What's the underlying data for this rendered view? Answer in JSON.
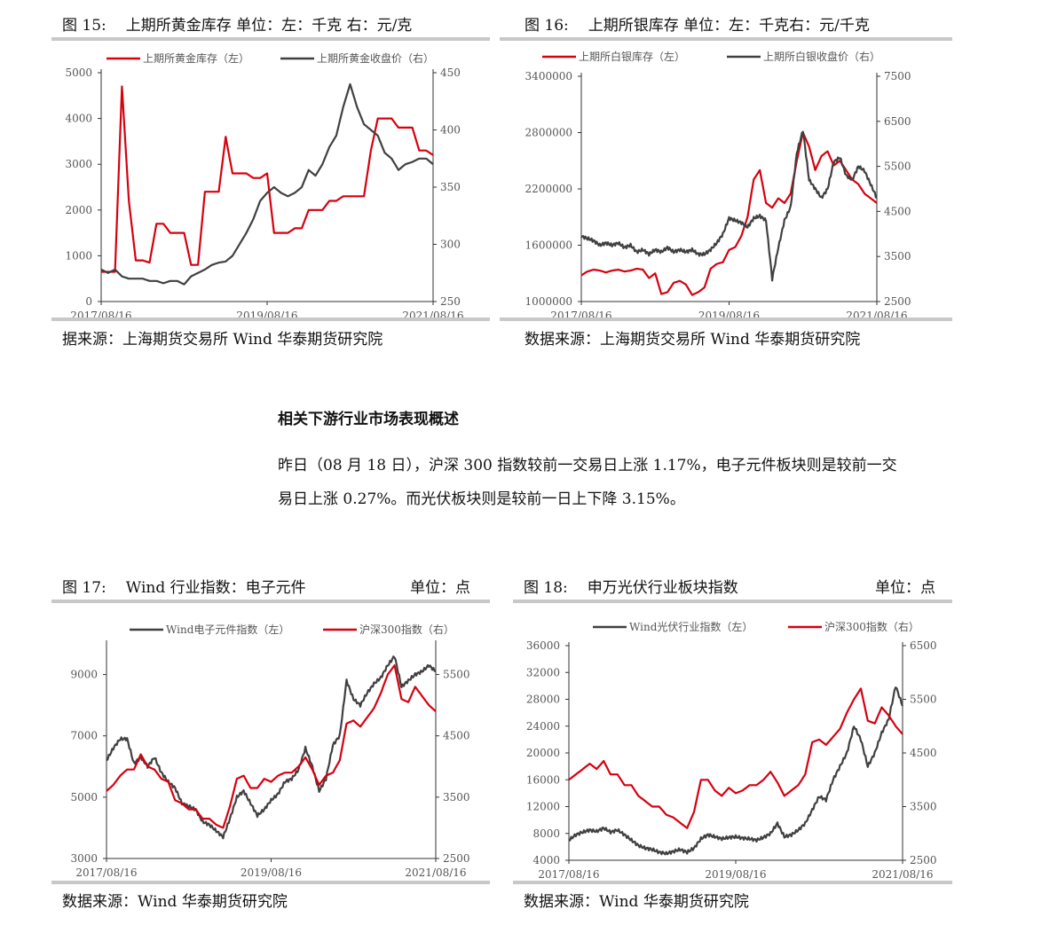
{
  "colors": {
    "red": "#d7000f",
    "gray": "#404040",
    "rule": "#c8c8c8"
  },
  "section": {
    "heading": "相关下游行业市场表现概述",
    "para_line1": "昨日（08 月 18 日），沪深 300 指数较前一交易日上涨 1.17%，电子元件板块则是较前一交",
    "para_line2": "易日上涨 0.27%。而光伏板块则是较前一日上下降 3.15%。"
  },
  "figures": [
    {
      "num": "图 15:",
      "title": "上期所黄金库存  单位：左：千克  右：元/克",
      "unit": "",
      "source": "据来源：上海期货交易所 Wind 华泰期货研究院"
    },
    {
      "num": "图 16:",
      "title": "上期所银库存 单位：左：千克右：元/千克",
      "unit": "",
      "source": "数据来源：上海期货交易所 Wind 华泰期货研究院"
    },
    {
      "num": "图 17:",
      "title": "Wind 行业指数：电子元件",
      "unit": "单位：点",
      "source": "数据来源：Wind 华泰期货研究院"
    },
    {
      "num": "图 18:",
      "title": "申万光伏行业板块指数",
      "unit": "单位：点",
      "source": "数据来源：Wind 华泰期货研究院"
    }
  ],
  "chart_data": [
    {
      "type": "line",
      "x_ticks": [
        "2017/08/16",
        "2019/08/16",
        "2021/08/16"
      ],
      "x": [
        "2017-08",
        "2017-09",
        "2017-10",
        "2017-11",
        "2017-12",
        "2018-01",
        "2018-02",
        "2018-03",
        "2018-04",
        "2018-05",
        "2018-06",
        "2018-07",
        "2018-08",
        "2018-09",
        "2018-10",
        "2018-11",
        "2018-12",
        "2019-01",
        "2019-02",
        "2019-03",
        "2019-04",
        "2019-05",
        "2019-06",
        "2019-07",
        "2019-08",
        "2019-09",
        "2019-10",
        "2019-11",
        "2019-12",
        "2020-01",
        "2020-02",
        "2020-03",
        "2020-04",
        "2020-05",
        "2020-06",
        "2020-07",
        "2020-08",
        "2020-09",
        "2020-10",
        "2020-11",
        "2020-12",
        "2021-01",
        "2021-02",
        "2021-03",
        "2021-04",
        "2021-05",
        "2021-06",
        "2021-07",
        "2021-08"
      ],
      "ylim_left": [
        0,
        5000
      ],
      "yticks_left": [
        0,
        1000,
        2000,
        3000,
        4000,
        5000
      ],
      "ylim_right": [
        250,
        450
      ],
      "yticks_right": [
        250,
        300,
        350,
        400,
        450
      ],
      "series": [
        {
          "name": "上期所黄金库存（左）",
          "axis": "left",
          "color": "#d7000f",
          "values": [
            650,
            650,
            650,
            4700,
            2200,
            900,
            900,
            850,
            1700,
            1700,
            1500,
            1500,
            1500,
            800,
            800,
            2400,
            2400,
            2400,
            3600,
            2800,
            2800,
            2800,
            2700,
            2700,
            2800,
            1500,
            1500,
            1500,
            1600,
            1600,
            2000,
            2000,
            2000,
            2200,
            2200,
            2300,
            2300,
            2300,
            2300,
            3300,
            4000,
            4000,
            4000,
            3800,
            3800,
            3800,
            3300,
            3300,
            3200
          ]
        },
        {
          "name": "上期所黄金收盘价（右）",
          "axis": "right",
          "color": "#404040",
          "values": [
            278,
            275,
            278,
            272,
            270,
            270,
            270,
            268,
            268,
            266,
            268,
            268,
            265,
            272,
            275,
            278,
            282,
            284,
            285,
            290,
            300,
            310,
            322,
            338,
            345,
            350,
            345,
            342,
            345,
            350,
            365,
            360,
            370,
            385,
            395,
            420,
            440,
            420,
            405,
            400,
            395,
            380,
            375,
            365,
            370,
            372,
            375,
            375,
            370
          ]
        }
      ]
    },
    {
      "type": "line",
      "x_ticks": [
        "2017/08/16",
        "2019/08/16",
        "2021/08/16"
      ],
      "x": [
        "2017-08",
        "2017-09",
        "2017-10",
        "2017-11",
        "2017-12",
        "2018-01",
        "2018-02",
        "2018-03",
        "2018-04",
        "2018-05",
        "2018-06",
        "2018-07",
        "2018-08",
        "2018-09",
        "2018-10",
        "2018-11",
        "2018-12",
        "2019-01",
        "2019-02",
        "2019-03",
        "2019-04",
        "2019-05",
        "2019-06",
        "2019-07",
        "2019-08",
        "2019-09",
        "2019-10",
        "2019-11",
        "2019-12",
        "2020-01",
        "2020-02",
        "2020-03",
        "2020-04",
        "2020-05",
        "2020-06",
        "2020-07",
        "2020-08",
        "2020-09",
        "2020-10",
        "2020-11",
        "2020-12",
        "2021-01",
        "2021-02",
        "2021-03",
        "2021-04",
        "2021-05",
        "2021-06",
        "2021-07",
        "2021-08"
      ],
      "ylim_left": [
        1000000,
        3400000
      ],
      "yticks_left": [
        1000000,
        1600000,
        2200000,
        2800000,
        3400000
      ],
      "ylim_right": [
        2500,
        7500
      ],
      "yticks_right": [
        2500,
        3500,
        4500,
        5500,
        6500,
        7500
      ],
      "series": [
        {
          "name": "上期所白银库存（左）",
          "axis": "left",
          "color": "#d7000f",
          "values": [
            1280000,
            1320000,
            1340000,
            1330000,
            1310000,
            1330000,
            1340000,
            1320000,
            1330000,
            1350000,
            1340000,
            1250000,
            1300000,
            1080000,
            1100000,
            1200000,
            1220000,
            1180000,
            1070000,
            1100000,
            1150000,
            1350000,
            1400000,
            1420000,
            1550000,
            1580000,
            1700000,
            1900000,
            2300000,
            2400000,
            2050000,
            2000000,
            2100000,
            2050000,
            2150000,
            2500000,
            2800000,
            2650000,
            2400000,
            2550000,
            2600000,
            2450000,
            2500000,
            2400000,
            2300000,
            2250000,
            2150000,
            2100000,
            2050000
          ]
        },
        {
          "name": "上期所白银收盘价（右）",
          "axis": "right",
          "color": "#404040",
          "values": [
            3950,
            3900,
            3850,
            3750,
            3800,
            3750,
            3800,
            3700,
            3750,
            3600,
            3650,
            3550,
            3650,
            3600,
            3700,
            3600,
            3650,
            3600,
            3650,
            3550,
            3550,
            3650,
            3800,
            4000,
            4350,
            4300,
            4250,
            4150,
            4350,
            4400,
            4300,
            3000,
            3700,
            4300,
            4600,
            5800,
            6300,
            5200,
            5000,
            4800,
            5000,
            5600,
            5700,
            5300,
            5200,
            5500,
            5400,
            5100,
            4800
          ]
        }
      ]
    },
    {
      "type": "line",
      "x_ticks": [
        "2017/08/16",
        "2019/08/16",
        "2021/08/16"
      ],
      "x": [
        "2017-08",
        "2017-09",
        "2017-10",
        "2017-11",
        "2017-12",
        "2018-01",
        "2018-02",
        "2018-03",
        "2018-04",
        "2018-05",
        "2018-06",
        "2018-07",
        "2018-08",
        "2018-09",
        "2018-10",
        "2018-11",
        "2018-12",
        "2019-01",
        "2019-02",
        "2019-03",
        "2019-04",
        "2019-05",
        "2019-06",
        "2019-07",
        "2019-08",
        "2019-09",
        "2019-10",
        "2019-11",
        "2019-12",
        "2020-01",
        "2020-02",
        "2020-03",
        "2020-04",
        "2020-05",
        "2020-06",
        "2020-07",
        "2020-08",
        "2020-09",
        "2020-10",
        "2020-11",
        "2020-12",
        "2021-01",
        "2021-02",
        "2021-03",
        "2021-04",
        "2021-05",
        "2021-06",
        "2021-07",
        "2021-08"
      ],
      "ylim_left": [
        3000,
        10000
      ],
      "yticks_left": [
        3000,
        5000,
        7000,
        9000
      ],
      "ylim_right": [
        2500,
        6000
      ],
      "yticks_right": [
        2500,
        3500,
        4500,
        5500
      ],
      "series": [
        {
          "name": "Wind电子元件指数（左）",
          "axis": "left",
          "color": "#404040",
          "values": [
            6200,
            6600,
            6900,
            6900,
            6100,
            6300,
            6000,
            6300,
            5800,
            5500,
            5300,
            4800,
            4700,
            4600,
            4200,
            4100,
            3900,
            3700,
            4300,
            5000,
            5200,
            4800,
            4400,
            4600,
            4900,
            5100,
            5500,
            5600,
            5900,
            6600,
            6000,
            5200,
            5600,
            6700,
            7000,
            8800,
            8200,
            8000,
            8400,
            8700,
            8900,
            9300,
            9600,
            8600,
            8800,
            9000,
            9100,
            9300,
            9100
          ]
        },
        {
          "name": "沪深300指数（右）",
          "axis": "right",
          "color": "#d7000f",
          "values": [
            3600,
            3700,
            3850,
            3950,
            3950,
            4200,
            4000,
            3950,
            3800,
            3750,
            3450,
            3400,
            3300,
            3300,
            3150,
            3150,
            3050,
            3000,
            3350,
            3800,
            3850,
            3650,
            3650,
            3800,
            3750,
            3850,
            3900,
            3900,
            4000,
            4150,
            3950,
            3700,
            3850,
            3900,
            4100,
            4700,
            4750,
            4650,
            4800,
            4950,
            5200,
            5500,
            5650,
            5100,
            5050,
            5300,
            5150,
            5000,
            4900
          ]
        }
      ]
    },
    {
      "type": "line",
      "x_ticks": [
        "2017/08/16",
        "2019/08/16",
        "2021/08/16"
      ],
      "x": [
        "2017-08",
        "2017-09",
        "2017-10",
        "2017-11",
        "2017-12",
        "2018-01",
        "2018-02",
        "2018-03",
        "2018-04",
        "2018-05",
        "2018-06",
        "2018-07",
        "2018-08",
        "2018-09",
        "2018-10",
        "2018-11",
        "2018-12",
        "2019-01",
        "2019-02",
        "2019-03",
        "2019-04",
        "2019-05",
        "2019-06",
        "2019-07",
        "2019-08",
        "2019-09",
        "2019-10",
        "2019-11",
        "2019-12",
        "2020-01",
        "2020-02",
        "2020-03",
        "2020-04",
        "2020-05",
        "2020-06",
        "2020-07",
        "2020-08",
        "2020-09",
        "2020-10",
        "2020-11",
        "2020-12",
        "2021-01",
        "2021-02",
        "2021-03",
        "2021-04",
        "2021-05",
        "2021-06",
        "2021-07",
        "2021-08"
      ],
      "ylim_left": [
        4000,
        36000
      ],
      "yticks_left": [
        4000,
        8000,
        12000,
        16000,
        20000,
        24000,
        28000,
        32000,
        36000
      ],
      "ylim_right": [
        2500,
        6500
      ],
      "yticks_right": [
        2500,
        3500,
        4500,
        5500,
        6500
      ],
      "series": [
        {
          "name": "Wind光伏行业指数（左）",
          "axis": "left",
          "color": "#404040",
          "values": [
            7000,
            7800,
            8200,
            8500,
            8300,
            8800,
            8200,
            8500,
            7800,
            7000,
            6200,
            5800,
            5600,
            5200,
            5000,
            5300,
            5600,
            5200,
            5800,
            7200,
            7800,
            7500,
            7200,
            7400,
            7500,
            7300,
            7200,
            7000,
            7400,
            8000,
            9500,
            7500,
            7800,
            8500,
            9500,
            11500,
            13500,
            13000,
            16000,
            18000,
            20000,
            24000,
            22000,
            18000,
            20000,
            23000,
            25000,
            30000,
            27000
          ]
        },
        {
          "name": "沪深300指数（右）",
          "axis": "right",
          "color": "#d7000f",
          "values": [
            4000,
            4100,
            4200,
            4300,
            4200,
            4350,
            4100,
            4100,
            3900,
            3900,
            3700,
            3600,
            3500,
            3500,
            3350,
            3300,
            3200,
            3100,
            3400,
            4000,
            4000,
            3800,
            3700,
            3850,
            3750,
            3800,
            3900,
            3900,
            4000,
            4150,
            3950,
            3700,
            3800,
            3900,
            4100,
            4700,
            4750,
            4650,
            4800,
            4950,
            5250,
            5500,
            5700,
            5100,
            5050,
            5350,
            5200,
            5000,
            4850
          ]
        }
      ]
    }
  ]
}
